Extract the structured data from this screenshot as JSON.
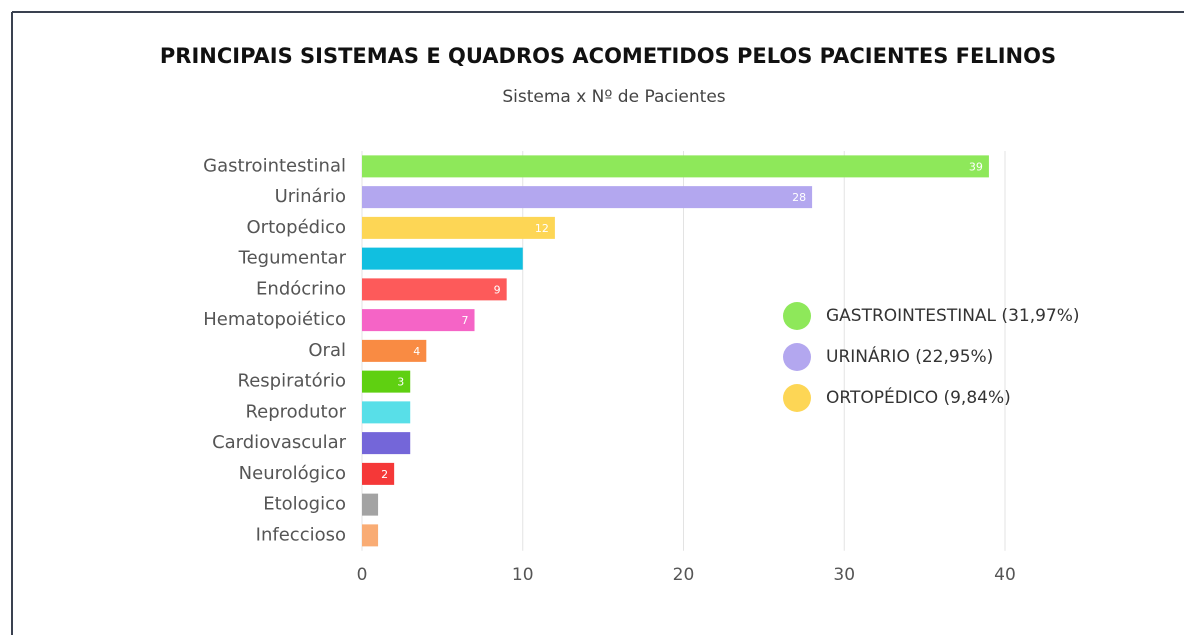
{
  "chart_data": {
    "type": "bar",
    "orientation": "horizontal",
    "title": "PRINCIPAIS SISTEMAS E QUADROS ACOMETIDOS PELOS PACIENTES FELINOS",
    "subtitle": "Sistema x Nº de Pacientes",
    "categories": [
      "Gastrointestinal",
      "Urinário",
      "Ortopédico",
      "Tegumentar",
      "Endócrino",
      "Hematopoiético",
      "Oral",
      "Respiratório",
      "Reprodutor",
      "Cardiovascular",
      "Neurológico",
      "Etologico",
      "Infeccioso"
    ],
    "values": [
      39,
      28,
      12,
      10,
      9,
      7,
      4,
      3,
      3,
      3,
      2,
      1,
      1
    ],
    "value_labels": [
      39,
      28,
      12,
      null,
      9,
      7,
      4,
      3,
      null,
      null,
      2,
      null,
      null
    ],
    "colors": [
      "#8ee85a",
      "#b3a7ef",
      "#fdd655",
      "#11bfe0",
      "#fd5a5a",
      "#f564c6",
      "#f98b43",
      "#5fd011",
      "#58dfe8",
      "#7466d9",
      "#f53838",
      "#a3a3a3",
      "#f9ac74"
    ],
    "xlim": [
      0,
      40
    ],
    "xticks": [
      0,
      10,
      20,
      30,
      40
    ],
    "grid": true,
    "legend": [
      {
        "label": "GASTROINTESTINAL (31,97%)",
        "color": "#8ee85a"
      },
      {
        "label": "URINÁRIO (22,95%)",
        "color": "#b3a7ef"
      },
      {
        "label": "ORTOPÉDICO (9,84%)",
        "color": "#fdd655"
      }
    ]
  }
}
